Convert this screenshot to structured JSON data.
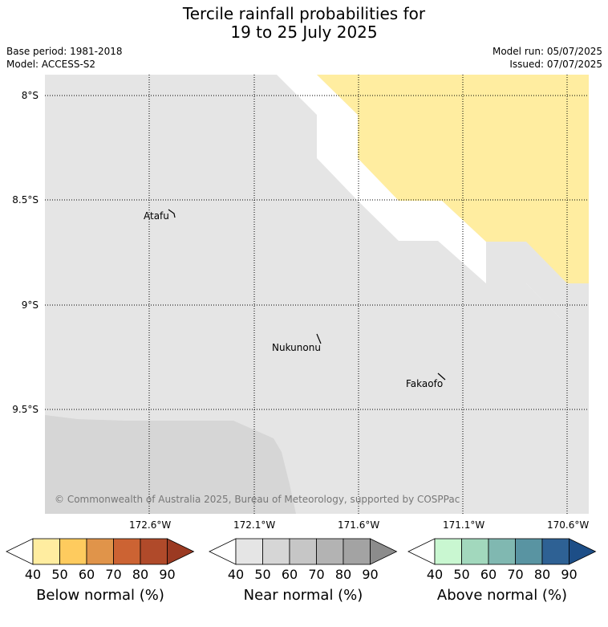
{
  "title_line1": "Tercile rainfall probabilities for",
  "title_line2": "19 to 25 July 2025",
  "meta": {
    "base_period": "Base period: 1981-2018",
    "model": "Model: ACCESS-S2",
    "model_run": "Model run: 05/07/2025",
    "issued": "Issued: 07/07/2025"
  },
  "lat_labels": [
    "8°S",
    "8.5°S",
    "9°S",
    "9.5°S"
  ],
  "lon_labels": [
    "172.6°W",
    "172.1°W",
    "171.6°W",
    "171.1°W",
    "170.6°W"
  ],
  "places": [
    "Atafu",
    "Nukunonu",
    "Fakaofo"
  ],
  "copyright": "© Commonwealth of Australia 2025, Bureau of Meteorology, supported by COSPPac",
  "colors": {
    "land_bg": "#e5e5e5",
    "near_50": "#d6d6d6",
    "below_40": "#ffeda0",
    "no_data": "#ffffff"
  },
  "colorbars": [
    {
      "title": "Below normal (%)",
      "ticks": [
        "40",
        "50",
        "60",
        "70",
        "80",
        "90"
      ],
      "colors": [
        "#ffeda0",
        "#fecb5e",
        "#e0944a",
        "#cc6333",
        "#b04a2a",
        "#9b3a22"
      ]
    },
    {
      "title": "Near normal (%)",
      "ticks": [
        "40",
        "50",
        "60",
        "70",
        "80",
        "90"
      ],
      "colors": [
        "#e5e5e5",
        "#d6d6d6",
        "#c6c6c6",
        "#b3b3b3",
        "#a3a3a3",
        "#8c8c8c"
      ]
    },
    {
      "title": "Above normal (%)",
      "ticks": [
        "40",
        "50",
        "60",
        "70",
        "80",
        "90"
      ],
      "colors": [
        "#c9f7d1",
        "#a2d8bd",
        "#80b8b1",
        "#5994a2",
        "#2e6194",
        "#1d4e87"
      ]
    }
  ]
}
